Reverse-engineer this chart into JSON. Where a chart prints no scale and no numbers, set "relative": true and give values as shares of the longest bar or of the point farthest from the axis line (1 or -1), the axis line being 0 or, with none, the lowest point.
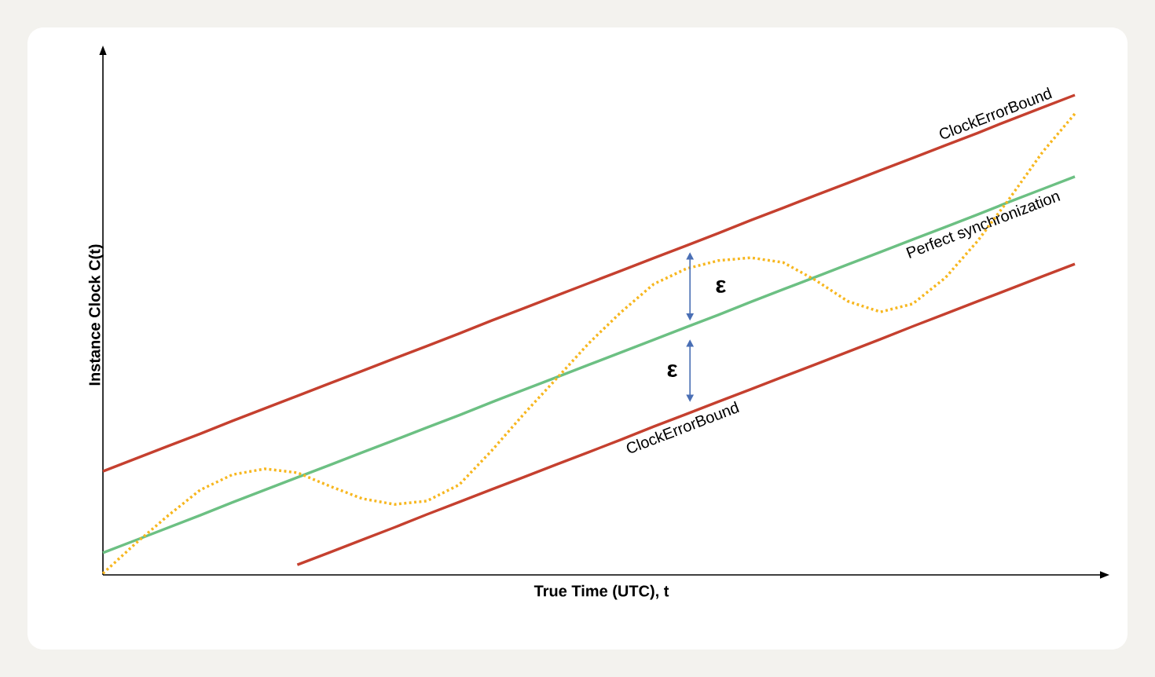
{
  "chart_data": {
    "type": "line",
    "relative": true,
    "xlabel": "True Time (UTC), t",
    "ylabel": "Instance Clock C(t)",
    "categories": [
      null,
      null,
      null,
      null,
      null,
      null,
      null,
      null,
      null,
      null,
      null,
      null,
      null,
      null,
      null,
      null,
      null,
      null,
      null,
      null,
      null,
      null,
      null,
      null,
      null,
      null,
      null,
      null,
      null,
      null,
      null
    ],
    "series": [
      {
        "name": "ClockErrorBound",
        "color": "#c5402f",
        "line_style": "solid",
        "values": [
          0.216,
          0.242,
          0.268,
          0.294,
          0.321,
          0.347,
          0.373,
          0.399,
          0.425,
          0.451,
          0.477,
          0.503,
          0.53,
          0.556,
          0.582,
          0.608,
          0.634,
          0.66,
          0.686,
          0.712,
          0.739,
          0.765,
          0.791,
          0.817,
          0.843,
          0.869,
          0.895,
          0.921,
          0.948,
          0.974,
          1.0
        ]
      },
      {
        "name": "Perfect synchronization",
        "color": "#6cc083",
        "line_style": "solid",
        "values": [
          0.046,
          0.072,
          0.098,
          0.124,
          0.151,
          0.177,
          0.203,
          0.229,
          0.255,
          0.281,
          0.307,
          0.333,
          0.36,
          0.386,
          0.412,
          0.438,
          0.464,
          0.49,
          0.516,
          0.542,
          0.569,
          0.595,
          0.621,
          0.647,
          0.673,
          0.699,
          0.725,
          0.751,
          0.778,
          0.804,
          0.83
        ]
      },
      {
        "name": "ClockErrorBound",
        "color": "#c5402f",
        "line_style": "solid",
        "values": [
          null,
          null,
          null,
          null,
          null,
          null,
          0.021,
          0.047,
          0.073,
          0.099,
          0.126,
          0.152,
          0.178,
          0.204,
          0.23,
          0.256,
          0.282,
          0.309,
          0.335,
          0.361,
          0.387,
          0.413,
          0.439,
          0.465,
          0.491,
          0.518,
          0.544,
          0.57,
          0.596,
          0.622,
          0.648
        ]
      },
      {
        "color": "#f7b720",
        "line_style": "dotted",
        "values": [
          0.003,
          0.065,
          0.123,
          0.177,
          0.209,
          0.221,
          0.213,
          0.185,
          0.159,
          0.147,
          0.154,
          0.188,
          0.259,
          0.336,
          0.409,
          0.483,
          0.548,
          0.606,
          0.638,
          0.655,
          0.661,
          0.651,
          0.614,
          0.57,
          0.548,
          0.565,
          0.619,
          0.696,
          0.786,
          0.881,
          0.961
        ]
      }
    ],
    "annotations": [
      "ε",
      "ε"
    ],
    "marker": "none"
  }
}
